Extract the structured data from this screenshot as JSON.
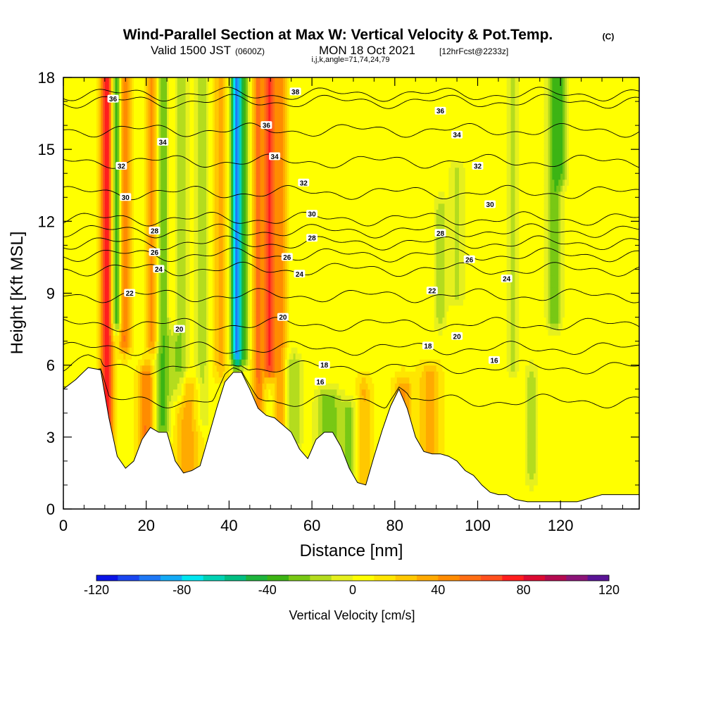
{
  "chart_data": {
    "type": "heatmap",
    "title": "Wind-Parallel Section at Max W: Vertical Velocity & Pot.Temp.",
    "title_mark": "(C)",
    "subtitle": {
      "valid": "Valid 1500 JST",
      "utc": "(0600Z)",
      "date": "MON 18 Oct 2021",
      "fcst": "[12hrFcst@2233z]"
    },
    "index_line": "i,j,k,angle=71,74,24,79",
    "xlabel": "Distance [nm]",
    "ylabel": "Height [Kft MSL]",
    "xlim": [
      0,
      139
    ],
    "ylim": [
      0,
      18
    ],
    "x_ticks": [
      "0",
      "20",
      "40",
      "60",
      "80",
      "100",
      "120"
    ],
    "y_ticks": [
      "0",
      "3",
      "6",
      "9",
      "12",
      "15",
      "18"
    ],
    "colorbar": {
      "label": "Vertical Velocity [cm/s]",
      "range": [
        -120,
        120
      ],
      "ticks": [
        "-120",
        "-80",
        "-40",
        "0",
        "40",
        "80",
        "120"
      ],
      "colors": [
        "#0a14e6",
        "#1a46f0",
        "#1f78f5",
        "#14aaf5",
        "#00e6f0",
        "#00d2b4",
        "#00be82",
        "#1eb43c",
        "#3cb414",
        "#78c814",
        "#b4dc1e",
        "#e6f01e",
        "#ffff00",
        "#ffe600",
        "#ffc800",
        "#ffaa00",
        "#ff8c00",
        "#ff6e14",
        "#ff501e",
        "#ff1e1e",
        "#dc0a32",
        "#b40a50",
        "#8c1478",
        "#5a1496"
      ]
    },
    "terrain_height_kft": [
      [
        0,
        5.0
      ],
      [
        3,
        5.4
      ],
      [
        6,
        5.9
      ],
      [
        9,
        5.8
      ],
      [
        11,
        3.8
      ],
      [
        13,
        2.2
      ],
      [
        15,
        1.7
      ],
      [
        17,
        2.0
      ],
      [
        19,
        2.9
      ],
      [
        21,
        3.4
      ],
      [
        23,
        3.2
      ],
      [
        25,
        3.2
      ],
      [
        27,
        2.0
      ],
      [
        29,
        1.5
      ],
      [
        31,
        1.6
      ],
      [
        33,
        1.8
      ],
      [
        35,
        3.0
      ],
      [
        37,
        4.2
      ],
      [
        39,
        5.3
      ],
      [
        41,
        5.7
      ],
      [
        43,
        5.7
      ],
      [
        45,
        5.0
      ],
      [
        47,
        4.2
      ],
      [
        49,
        3.9
      ],
      [
        51,
        3.8
      ],
      [
        53,
        3.5
      ],
      [
        55,
        3.2
      ],
      [
        57,
        2.5
      ],
      [
        59,
        2.1
      ],
      [
        61,
        2.9
      ],
      [
        63,
        3.2
      ],
      [
        65,
        3.2
      ],
      [
        67,
        2.6
      ],
      [
        69,
        1.7
      ],
      [
        71,
        1.1
      ],
      [
        73,
        1.0
      ],
      [
        75,
        2.2
      ],
      [
        77,
        3.3
      ],
      [
        79,
        4.3
      ],
      [
        81,
        5.0
      ],
      [
        83,
        4.2
      ],
      [
        85,
        3.0
      ],
      [
        87,
        2.4
      ],
      [
        89,
        2.3
      ],
      [
        91,
        2.3
      ],
      [
        93,
        2.2
      ],
      [
        95,
        2.0
      ],
      [
        97,
        1.6
      ],
      [
        99,
        1.4
      ],
      [
        101,
        1.0
      ],
      [
        103,
        0.7
      ],
      [
        105,
        0.6
      ],
      [
        107,
        0.6
      ],
      [
        109,
        0.4
      ],
      [
        112,
        0.3
      ],
      [
        116,
        0.3
      ],
      [
        120,
        0.3
      ],
      [
        124,
        0.3
      ],
      [
        128,
        0.5
      ],
      [
        130,
        0.6
      ],
      [
        134,
        0.6
      ],
      [
        139,
        0.6
      ]
    ],
    "w_features": [
      {
        "x": 10.5,
        "sigma": 1.0,
        "ylo": 2.5,
        "yhi": 18,
        "w": 75
      },
      {
        "x": 12.8,
        "sigma": 0.8,
        "ylo": 8.0,
        "yhi": 18,
        "w": -55
      },
      {
        "x": 14.8,
        "sigma": 1.0,
        "ylo": 7.0,
        "yhi": 18,
        "w": 45
      },
      {
        "x": 20.0,
        "sigma": 1.3,
        "ylo": 2.0,
        "yhi": 5.5,
        "w": 45
      },
      {
        "x": 21.5,
        "sigma": 1.0,
        "ylo": 7.0,
        "yhi": 18,
        "w": 40
      },
      {
        "x": 24.0,
        "sigma": 1.3,
        "ylo": 3.5,
        "yhi": 18,
        "w": -38
      },
      {
        "x": 26.5,
        "sigma": 1.2,
        "ylo": 8.0,
        "yhi": 18,
        "w": 22
      },
      {
        "x": 28.0,
        "sigma": 1.4,
        "ylo": 5.0,
        "yhi": 18,
        "w": -30
      },
      {
        "x": 30.0,
        "sigma": 2.0,
        "ylo": 1.5,
        "yhi": 5.0,
        "w": 30
      },
      {
        "x": 33.5,
        "sigma": 1.2,
        "ylo": 4.0,
        "yhi": 18,
        "w": -20
      },
      {
        "x": 38.0,
        "sigma": 1.2,
        "ylo": 6.0,
        "yhi": 18,
        "w": 25
      },
      {
        "x": 41.8,
        "sigma": 0.9,
        "ylo": 6.5,
        "yhi": 18,
        "w": -95
      },
      {
        "x": 43.8,
        "sigma": 0.9,
        "ylo": 6.5,
        "yhi": 18,
        "w": -30
      },
      {
        "x": 47.0,
        "sigma": 1.0,
        "ylo": 4.0,
        "yhi": 18,
        "w": 45
      },
      {
        "x": 49.8,
        "sigma": 1.0,
        "ylo": 6.0,
        "yhi": 18,
        "w": 65
      },
      {
        "x": 52.5,
        "sigma": 1.0,
        "ylo": 3.0,
        "yhi": 18,
        "w": 35
      },
      {
        "x": 55.5,
        "sigma": 1.5,
        "ylo": 3.0,
        "yhi": 6.0,
        "w": -25
      },
      {
        "x": 64.0,
        "sigma": 2.0,
        "ylo": 1.5,
        "yhi": 4.5,
        "w": -35
      },
      {
        "x": 69.0,
        "sigma": 1.5,
        "ylo": 1.0,
        "yhi": 4.0,
        "w": -28
      },
      {
        "x": 72.5,
        "sigma": 1.2,
        "ylo": 1.0,
        "yhi": 5.0,
        "w": 25
      },
      {
        "x": 82.0,
        "sigma": 1.5,
        "ylo": 2.0,
        "yhi": 5.0,
        "w": 35
      },
      {
        "x": 88.5,
        "sigma": 1.8,
        "ylo": 2.0,
        "yhi": 5.5,
        "w": 30
      },
      {
        "x": 91.0,
        "sigma": 1.0,
        "ylo": 8.0,
        "yhi": 12.5,
        "w": -22
      },
      {
        "x": 95.0,
        "sigma": 1.3,
        "ylo": 9.0,
        "yhi": 14.0,
        "w": -18
      },
      {
        "x": 108.5,
        "sigma": 1.0,
        "ylo": 6.0,
        "yhi": 18,
        "w": -18
      },
      {
        "x": 113.0,
        "sigma": 1.0,
        "ylo": 1.5,
        "yhi": 5.5,
        "w": -22
      },
      {
        "x": 118.5,
        "sigma": 1.2,
        "ylo": 8.0,
        "yhi": 18,
        "w": -35
      },
      {
        "x": 120.5,
        "sigma": 1.0,
        "ylo": 14.0,
        "yhi": 18,
        "w": -25
      }
    ],
    "theta_contours": [
      {
        "base": 4.5,
        "label": "16",
        "label_at": [
          [
            62,
            5.3
          ],
          [
            104,
            6.2
          ]
        ]
      },
      {
        "base": 5.9,
        "label": "18",
        "label_at": [
          [
            63,
            6.0
          ],
          [
            88,
            6.8
          ]
        ]
      },
      {
        "base": 6.7,
        "label": "20",
        "label_at": [
          [
            28,
            7.5
          ],
          [
            53,
            8.0
          ],
          [
            95,
            7.2
          ]
        ]
      },
      {
        "base": 7.7,
        "label": "22",
        "label_at": [
          [
            16,
            9.0
          ],
          [
            89,
            9.1
          ]
        ]
      },
      {
        "base": 8.9,
        "label": "24",
        "label_at": [
          [
            23,
            10.0
          ],
          [
            57,
            9.8
          ],
          [
            107,
            9.6
          ]
        ]
      },
      {
        "base": 10.0,
        "label": "26",
        "label_at": [
          [
            54,
            10.5
          ],
          [
            98,
            10.4
          ]
        ]
      },
      {
        "base": 10.6,
        "label": "26",
        "label_at": [
          [
            22,
            10.7
          ]
        ]
      },
      {
        "base": 11.1,
        "label": "28",
        "label_at": [
          [
            60,
            11.3
          ],
          [
            91,
            11.5
          ]
        ]
      },
      {
        "base": 11.6,
        "label": "28",
        "label_at": [
          [
            22,
            11.6
          ]
        ]
      },
      {
        "base": 12.1,
        "label": "30",
        "label_at": [
          [
            15,
            13.0
          ],
          [
            60,
            12.3
          ],
          [
            103,
            12.7
          ]
        ]
      },
      {
        "base": 13.2,
        "label": "32",
        "label_at": [
          [
            14,
            14.3
          ],
          [
            58,
            13.6
          ],
          [
            100,
            14.3
          ]
        ]
      },
      {
        "base": 14.5,
        "label": "34",
        "label_at": [
          [
            24,
            15.3
          ],
          [
            51,
            14.7
          ],
          [
            95,
            15.6
          ]
        ]
      },
      {
        "base": 15.8,
        "label": "36",
        "label_at": [
          [
            49,
            16.0
          ],
          [
            91,
            16.6
          ]
        ]
      },
      {
        "base": 17.0,
        "label": "36",
        "label_at": [
          [
            12,
            17.1
          ]
        ]
      },
      {
        "base": 17.3,
        "label": "38",
        "label_at": [
          [
            56,
            17.4
          ]
        ]
      }
    ]
  }
}
